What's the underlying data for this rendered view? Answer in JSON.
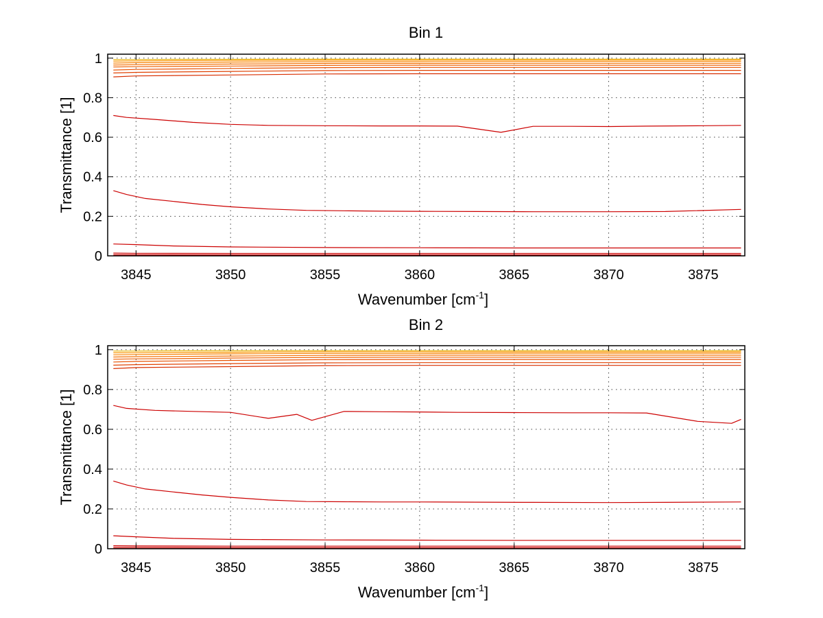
{
  "chart_data": [
    {
      "type": "line",
      "title": "Bin 1",
      "xlabel": "Wavenumber [cm",
      "xlabel_sup": "-1",
      "xlabel_end": "]",
      "ylabel": "Transmittance [1]",
      "xlim": [
        3843.5,
        3877.2
      ],
      "ylim": [
        0,
        1.02
      ],
      "xticks": [
        3845,
        3850,
        3855,
        3860,
        3865,
        3870,
        3875
      ],
      "xtick_labels": [
        "3845",
        "3850",
        "3855",
        "3860",
        "3865",
        "3870",
        "3875"
      ],
      "yticks": [
        0,
        0.2,
        0.4,
        0.6,
        0.8,
        1
      ],
      "ytick_labels": [
        "0",
        "0.2",
        "0.4",
        "0.6",
        "0.8",
        "1"
      ],
      "grid": true,
      "line_colors": [
        "#cc0000",
        "#d01a00",
        "#d82e00",
        "#e04000",
        "#e85000",
        "#ee6000",
        "#f47000",
        "#f88200",
        "#fa9400",
        "#e8b000"
      ],
      "series": [
        {
          "x": [
            3843.8,
            3845,
            3847,
            3850,
            3855,
            3860,
            3865,
            3870,
            3875,
            3877
          ],
          "values": [
            0.993,
            0.993,
            0.994,
            0.994,
            0.995,
            0.995,
            0.995,
            0.995,
            0.995,
            0.995
          ]
        },
        {
          "x": [
            3843.8,
            3845,
            3847,
            3850,
            3855,
            3860,
            3865,
            3870,
            3875,
            3877
          ],
          "values": [
            0.985,
            0.986,
            0.987,
            0.988,
            0.99,
            0.99,
            0.99,
            0.99,
            0.99,
            0.99
          ]
        },
        {
          "x": [
            3843.8,
            3845,
            3847,
            3850,
            3855,
            3860,
            3865,
            3870,
            3875,
            3877
          ],
          "values": [
            0.975,
            0.977,
            0.978,
            0.98,
            0.982,
            0.982,
            0.983,
            0.983,
            0.983,
            0.983
          ]
        },
        {
          "x": [
            3843.8,
            3845,
            3847,
            3850,
            3855,
            3860,
            3865,
            3870,
            3875,
            3877
          ],
          "values": [
            0.965,
            0.967,
            0.968,
            0.97,
            0.973,
            0.973,
            0.974,
            0.974,
            0.974,
            0.974
          ]
        },
        {
          "x": [
            3843.8,
            3845,
            3847,
            3850,
            3855,
            3860,
            3865,
            3870,
            3875,
            3877
          ],
          "values": [
            0.955,
            0.957,
            0.958,
            0.96,
            0.963,
            0.964,
            0.964,
            0.964,
            0.964,
            0.964
          ]
        },
        {
          "x": [
            3843.8,
            3845,
            3847,
            3850,
            3855,
            3860,
            3865,
            3870,
            3875,
            3877
          ],
          "values": [
            0.94,
            0.943,
            0.945,
            0.948,
            0.952,
            0.953,
            0.953,
            0.953,
            0.953,
            0.953
          ]
        },
        {
          "x": [
            3843.8,
            3845,
            3847,
            3850,
            3855,
            3860,
            3865,
            3870,
            3875,
            3877
          ],
          "values": [
            0.925,
            0.928,
            0.93,
            0.933,
            0.937,
            0.938,
            0.938,
            0.938,
            0.938,
            0.938
          ]
        },
        {
          "x": [
            3843.8,
            3845,
            3847,
            3850,
            3855,
            3860,
            3865,
            3870,
            3875,
            3877
          ],
          "values": [
            0.905,
            0.91,
            0.912,
            0.915,
            0.92,
            0.921,
            0.921,
            0.921,
            0.921,
            0.921
          ]
        },
        {
          "x": [
            3843.8,
            3844.5,
            3846,
            3848,
            3850,
            3852,
            3855,
            3858,
            3860,
            3862,
            3864.3,
            3866,
            3868,
            3870,
            3872,
            3875,
            3877
          ],
          "values": [
            0.71,
            0.7,
            0.69,
            0.675,
            0.665,
            0.66,
            0.658,
            0.657,
            0.657,
            0.656,
            0.625,
            0.655,
            0.655,
            0.654,
            0.656,
            0.658,
            0.66
          ]
        },
        {
          "x": [
            3843.8,
            3844.5,
            3845.5,
            3847,
            3848.5,
            3850,
            3852,
            3854,
            3856,
            3858,
            3860,
            3863,
            3866,
            3870,
            3873,
            3877
          ],
          "values": [
            0.33,
            0.31,
            0.29,
            0.275,
            0.26,
            0.248,
            0.237,
            0.23,
            0.228,
            0.226,
            0.225,
            0.224,
            0.223,
            0.223,
            0.224,
            0.235
          ]
        },
        {
          "x": [
            3843.8,
            3845,
            3847,
            3850,
            3855,
            3860,
            3865,
            3870,
            3875,
            3877
          ],
          "values": [
            0.06,
            0.057,
            0.05,
            0.045,
            0.042,
            0.041,
            0.04,
            0.04,
            0.04,
            0.04
          ]
        },
        {
          "x": [
            3843.8,
            3845,
            3850,
            3855,
            3860,
            3865,
            3870,
            3875,
            3877
          ],
          "values": [
            0.014,
            0.013,
            0.012,
            0.012,
            0.012,
            0.012,
            0.012,
            0.012,
            0.012
          ]
        },
        {
          "x": [
            3843.8,
            3845,
            3850,
            3855,
            3860,
            3865,
            3870,
            3875,
            3877
          ],
          "values": [
            0.006,
            0.006,
            0.005,
            0.005,
            0.005,
            0.005,
            0.005,
            0.005,
            0.005
          ]
        },
        {
          "x": [
            3843.8,
            3845,
            3850,
            3855,
            3860,
            3865,
            3870,
            3875,
            3877
          ],
          "values": [
            0.001,
            0.001,
            0.001,
            0.001,
            0.001,
            0.001,
            0.001,
            0.001,
            0.001
          ]
        }
      ]
    },
    {
      "type": "line",
      "title": "Bin 2",
      "xlabel": "Wavenumber [cm",
      "xlabel_sup": "-1",
      "xlabel_end": "]",
      "ylabel": "Transmittance [1]",
      "xlim": [
        3843.5,
        3877.2
      ],
      "ylim": [
        0,
        1.02
      ],
      "xticks": [
        3845,
        3850,
        3855,
        3860,
        3865,
        3870,
        3875
      ],
      "xtick_labels": [
        "3845",
        "3850",
        "3855",
        "3860",
        "3865",
        "3870",
        "3875"
      ],
      "yticks": [
        0,
        0.2,
        0.4,
        0.6,
        0.8,
        1
      ],
      "ytick_labels": [
        "0",
        "0.2",
        "0.4",
        "0.6",
        "0.8",
        "1"
      ],
      "grid": true,
      "line_colors": [
        "#cc0000",
        "#d01a00",
        "#d82e00",
        "#e04000",
        "#e85000",
        "#ee6000",
        "#f47000",
        "#f88200",
        "#fa9400",
        "#e8b000"
      ],
      "series": [
        {
          "x": [
            3843.8,
            3845,
            3847,
            3850,
            3855,
            3860,
            3865,
            3870,
            3875,
            3877
          ],
          "values": [
            0.993,
            0.993,
            0.994,
            0.994,
            0.995,
            0.995,
            0.995,
            0.995,
            0.995,
            0.995
          ]
        },
        {
          "x": [
            3843.8,
            3845,
            3847,
            3850,
            3855,
            3860,
            3865,
            3870,
            3875,
            3877
          ],
          "values": [
            0.984,
            0.985,
            0.986,
            0.987,
            0.989,
            0.989,
            0.989,
            0.989,
            0.989,
            0.989
          ]
        },
        {
          "x": [
            3843.8,
            3845,
            3847,
            3850,
            3855,
            3860,
            3865,
            3870,
            3875,
            3877
          ],
          "values": [
            0.974,
            0.976,
            0.977,
            0.979,
            0.981,
            0.981,
            0.982,
            0.982,
            0.982,
            0.982
          ]
        },
        {
          "x": [
            3843.8,
            3845,
            3847,
            3850,
            3855,
            3860,
            3865,
            3870,
            3875,
            3877
          ],
          "values": [
            0.963,
            0.965,
            0.966,
            0.968,
            0.971,
            0.972,
            0.972,
            0.972,
            0.972,
            0.972
          ]
        },
        {
          "x": [
            3843.8,
            3845,
            3847,
            3850,
            3855,
            3860,
            3865,
            3870,
            3875,
            3877
          ],
          "values": [
            0.952,
            0.954,
            0.955,
            0.958,
            0.961,
            0.962,
            0.962,
            0.962,
            0.962,
            0.962
          ]
        },
        {
          "x": [
            3843.8,
            3845,
            3847,
            3850,
            3855,
            3860,
            3865,
            3870,
            3875,
            3877
          ],
          "values": [
            0.938,
            0.941,
            0.943,
            0.946,
            0.95,
            0.951,
            0.951,
            0.951,
            0.951,
            0.951
          ]
        },
        {
          "x": [
            3843.8,
            3845,
            3847,
            3850,
            3855,
            3860,
            3865,
            3870,
            3875,
            3877
          ],
          "values": [
            0.922,
            0.925,
            0.927,
            0.93,
            0.934,
            0.935,
            0.935,
            0.935,
            0.935,
            0.935
          ]
        },
        {
          "x": [
            3843.8,
            3845,
            3847,
            3850,
            3855,
            3860,
            3865,
            3870,
            3875,
            3877
          ],
          "values": [
            0.905,
            0.91,
            0.912,
            0.915,
            0.92,
            0.921,
            0.921,
            0.921,
            0.921,
            0.921
          ]
        },
        {
          "x": [
            3843.8,
            3844.5,
            3846,
            3848,
            3850,
            3852,
            3853.5,
            3854.3,
            3856,
            3858,
            3860,
            3862,
            3865,
            3868,
            3870,
            3872,
            3874.7,
            3876.5,
            3877
          ],
          "values": [
            0.72,
            0.705,
            0.695,
            0.69,
            0.685,
            0.655,
            0.675,
            0.645,
            0.69,
            0.688,
            0.687,
            0.685,
            0.684,
            0.683,
            0.683,
            0.682,
            0.64,
            0.63,
            0.65
          ]
        },
        {
          "x": [
            3843.8,
            3844.5,
            3845.5,
            3847,
            3848.5,
            3850,
            3852,
            3854,
            3856,
            3858,
            3860,
            3863,
            3866,
            3870,
            3873,
            3877
          ],
          "values": [
            0.34,
            0.32,
            0.3,
            0.285,
            0.27,
            0.258,
            0.245,
            0.237,
            0.236,
            0.235,
            0.235,
            0.234,
            0.233,
            0.232,
            0.233,
            0.235
          ]
        },
        {
          "x": [
            3843.8,
            3845,
            3847,
            3850,
            3855,
            3860,
            3865,
            3870,
            3875,
            3877
          ],
          "values": [
            0.065,
            0.06,
            0.052,
            0.047,
            0.044,
            0.043,
            0.042,
            0.042,
            0.042,
            0.042
          ]
        },
        {
          "x": [
            3843.8,
            3845,
            3850,
            3855,
            3860,
            3865,
            3870,
            3875,
            3877
          ],
          "values": [
            0.015,
            0.014,
            0.013,
            0.013,
            0.013,
            0.013,
            0.013,
            0.013,
            0.013
          ]
        },
        {
          "x": [
            3843.8,
            3845,
            3850,
            3855,
            3860,
            3865,
            3870,
            3875,
            3877
          ],
          "values": [
            0.007,
            0.007,
            0.006,
            0.006,
            0.006,
            0.006,
            0.006,
            0.006,
            0.006
          ]
        },
        {
          "x": [
            3843.8,
            3845,
            3850,
            3855,
            3860,
            3865,
            3870,
            3875,
            3877
          ],
          "values": [
            0.001,
            0.001,
            0.001,
            0.001,
            0.001,
            0.001,
            0.001,
            0.001,
            0.001
          ]
        }
      ]
    }
  ]
}
